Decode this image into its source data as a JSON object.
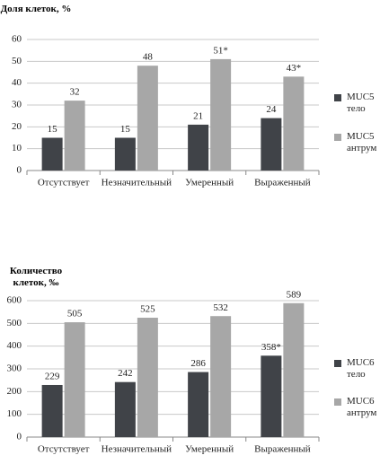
{
  "chart_data": [
    {
      "type": "bar",
      "title": "Доля  клеток, %",
      "categories": [
        "Отсутствует",
        "Незначительный",
        "Умеренный",
        "Выраженный"
      ],
      "series": [
        {
          "name": "MUC5 тело",
          "color": "#404348",
          "values": [
            15,
            15,
            21,
            24
          ],
          "value_labels": [
            "15",
            "15",
            "21",
            "24"
          ]
        },
        {
          "name": "MUC5 антрум",
          "color": "#a7a7a7",
          "values": [
            32,
            48,
            51,
            43
          ],
          "value_labels": [
            "32",
            "48",
            "51*",
            "43*"
          ]
        }
      ],
      "ylim": [
        0,
        60
      ],
      "yticks": [
        0,
        10,
        20,
        30,
        40,
        50,
        60
      ],
      "grid": true,
      "legend": "right"
    },
    {
      "type": "bar",
      "title": "Количество клеток, ‰",
      "categories": [
        "Отсутствует",
        "Незначительный",
        "Умеренный",
        "Выраженный"
      ],
      "series": [
        {
          "name": "MUC6 тело",
          "color": "#404348",
          "values": [
            229,
            242,
            286,
            358
          ],
          "value_labels": [
            "229",
            "242",
            "286",
            "358*"
          ]
        },
        {
          "name": "MUC6 антрум",
          "color": "#a7a7a7",
          "values": [
            505,
            525,
            532,
            589
          ],
          "value_labels": [
            "505",
            "525",
            "532",
            "589"
          ]
        }
      ],
      "ylim": [
        0,
        600
      ],
      "yticks": [
        0,
        100,
        200,
        300,
        400,
        500,
        600
      ],
      "grid": true,
      "legend": "right"
    }
  ]
}
